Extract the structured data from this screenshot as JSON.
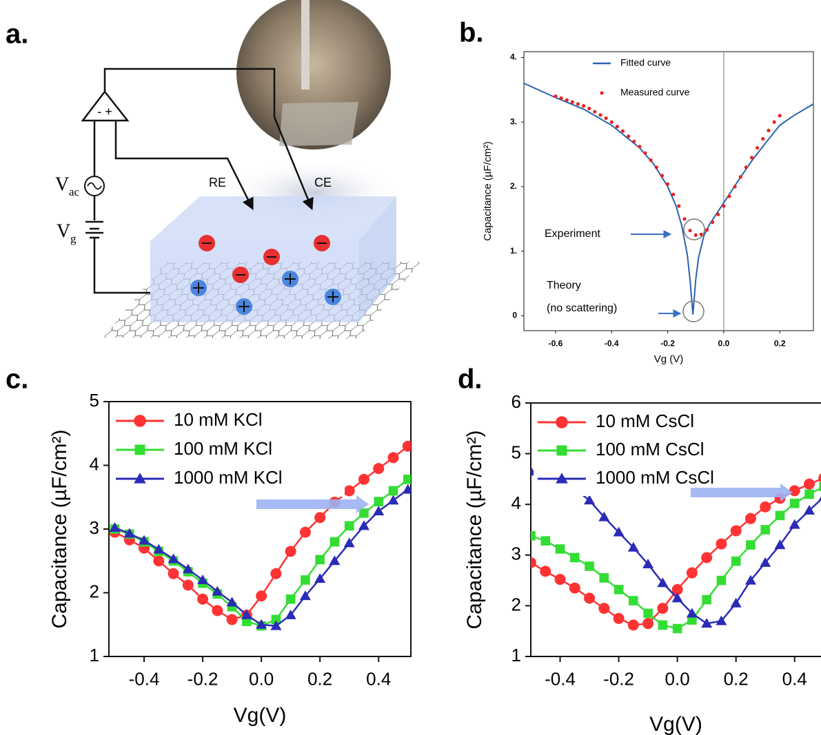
{
  "panel_labels": [
    "a.",
    "b.",
    "c.",
    "d."
  ],
  "diagram": {
    "electrode_labels": [
      "RE",
      "CE"
    ],
    "amplifier_signs": "- +",
    "vac": [
      "V",
      "ac"
    ],
    "vg": [
      "V",
      "g"
    ]
  },
  "chart_data": [
    {
      "type": "line",
      "x_label": "Vg (V)",
      "y_label": "Capacitance (µF/cm²)",
      "xlim": [
        -0.713,
        0.32
      ],
      "ylim": [
        -0.23,
        4.09
      ],
      "xticks": [
        -0.6,
        -0.4,
        -0.2,
        {
          "value": 0,
          "label": "0.0"
        },
        0.2
      ],
      "yticks": [
        0,
        {
          "value": 1,
          "label": "1."
        },
        {
          "value": 2,
          "label": "2."
        },
        {
          "value": 3,
          "label": "3."
        },
        {
          "value": 4,
          "label": "4."
        }
      ],
      "reference_line_x": 0,
      "legend": "upper center",
      "annotations": [
        "Experiment",
        "Theory",
        "(no scattering)"
      ],
      "series": [
        {
          "name": "Fitted curve",
          "color": "#2a62ad",
          "mode": "line",
          "x": [
            -0.713,
            -0.6,
            -0.5,
            -0.4,
            -0.3,
            -0.25,
            -0.2,
            -0.17,
            -0.15,
            -0.13,
            -0.12,
            -0.11,
            -0.1,
            -0.09,
            -0.07,
            -0.05,
            0,
            0.05,
            0.1,
            0.15,
            0.2,
            0.25,
            0.32
          ],
          "values": [
            3.6,
            3.38,
            3.2,
            2.95,
            2.6,
            2.35,
            2.0,
            1.7,
            1.4,
            0.95,
            0.55,
            0.02,
            0.55,
            0.9,
            1.25,
            1.42,
            1.75,
            2.08,
            2.4,
            2.68,
            2.95,
            3.1,
            3.28
          ]
        },
        {
          "name": "Measured curve",
          "color": "#e82222",
          "mode": "markers",
          "x": [
            -0.6,
            -0.58,
            -0.56,
            -0.54,
            -0.52,
            -0.5,
            -0.48,
            -0.46,
            -0.44,
            -0.42,
            -0.4,
            -0.38,
            -0.36,
            -0.34,
            -0.32,
            -0.3,
            -0.28,
            -0.26,
            -0.24,
            -0.22,
            -0.2,
            -0.18,
            -0.16,
            -0.14,
            -0.12,
            -0.1,
            -0.08,
            -0.06,
            -0.04,
            -0.02,
            0,
            0.02,
            0.04,
            0.06,
            0.08,
            0.1,
            0.12,
            0.14,
            0.16,
            0.18,
            0.2
          ],
          "values": [
            3.4,
            3.37,
            3.34,
            3.31,
            3.28,
            3.25,
            3.21,
            3.16,
            3.11,
            3.06,
            3.0,
            2.93,
            2.86,
            2.78,
            2.7,
            2.62,
            2.52,
            2.41,
            2.3,
            2.17,
            2.04,
            1.88,
            1.7,
            1.5,
            1.32,
            1.25,
            1.26,
            1.33,
            1.45,
            1.57,
            1.7,
            1.85,
            2.0,
            2.15,
            2.3,
            2.45,
            2.6,
            2.74,
            2.87,
            3.0,
            3.1
          ]
        }
      ]
    },
    {
      "type": "line",
      "x_label": "Vg(V)",
      "y_label": "Capacitance (µF/cm²)",
      "xlim": [
        -0.52,
        0.51
      ],
      "ylim": [
        1,
        5
      ],
      "xticks": [
        -0.4,
        -0.2,
        {
          "value": 0,
          "label": "0.0"
        },
        0.2,
        0.4
      ],
      "yticks": [
        1,
        2,
        3,
        4,
        5
      ],
      "legend": "upper left",
      "x": [
        -0.5,
        -0.45,
        -0.4,
        -0.35,
        -0.3,
        -0.25,
        -0.2,
        -0.15,
        -0.1,
        -0.05,
        0,
        0.05,
        0.1,
        0.15,
        0.2,
        0.25,
        0.3,
        0.35,
        0.4,
        0.45,
        0.5
      ],
      "series": [
        {
          "name": "10 mM KCl",
          "color": "#ff3333",
          "mode": "lines+markers",
          "marker": "circle",
          "values": [
            2.95,
            2.83,
            2.7,
            2.5,
            2.3,
            2.12,
            1.9,
            1.72,
            1.58,
            1.65,
            1.95,
            2.3,
            2.65,
            2.95,
            3.18,
            3.42,
            3.6,
            3.78,
            3.95,
            4.12,
            4.3
          ]
        },
        {
          "name": "100 mM KCl",
          "color": "#33dd33",
          "mode": "lines+markers",
          "marker": "square",
          "values": [
            3.0,
            2.92,
            2.8,
            2.65,
            2.5,
            2.33,
            2.15,
            1.98,
            1.78,
            1.55,
            1.48,
            1.58,
            1.9,
            2.2,
            2.52,
            2.8,
            3.05,
            3.25,
            3.43,
            3.6,
            3.78
          ]
        },
        {
          "name": "1000 mM KCl",
          "color": "#2b2bb8",
          "mode": "lines+markers",
          "marker": "triangle",
          "values": [
            3.02,
            2.93,
            2.82,
            2.68,
            2.53,
            2.37,
            2.2,
            2.02,
            1.85,
            1.65,
            1.5,
            1.48,
            1.65,
            1.95,
            2.22,
            2.5,
            2.78,
            3.05,
            3.28,
            3.45,
            3.62
          ]
        }
      ]
    },
    {
      "type": "line",
      "x_label": "Vg(V)",
      "y_label": "Capacitance (µF/cm²)",
      "xlim": [
        -0.5,
        0.49
      ],
      "ylim": [
        1,
        6
      ],
      "xticks": [
        -0.4,
        -0.2,
        {
          "value": 0,
          "label": "0.0"
        },
        0.2,
        0.4
      ],
      "yticks": [
        1,
        2,
        3,
        4,
        5,
        6
      ],
      "legend": "upper left",
      "x": [
        -0.5,
        -0.45,
        -0.4,
        -0.35,
        -0.3,
        -0.25,
        -0.2,
        -0.15,
        -0.1,
        -0.05,
        0,
        0.05,
        0.1,
        0.15,
        0.2,
        0.25,
        0.3,
        0.35,
        0.4,
        0.45,
        0.5
      ],
      "series": [
        {
          "name": "10 mM CsCl",
          "color": "#ff3333",
          "mode": "lines+markers",
          "marker": "circle",
          "values": [
            2.85,
            2.68,
            2.52,
            2.35,
            2.15,
            1.95,
            1.75,
            1.62,
            1.65,
            1.95,
            2.32,
            2.65,
            2.95,
            3.22,
            3.48,
            3.72,
            3.95,
            4.12,
            4.27,
            4.4,
            4.52
          ]
        },
        {
          "name": "100 mM CsCl",
          "color": "#33dd33",
          "mode": "lines+markers",
          "marker": "square",
          "values": [
            3.38,
            3.28,
            3.12,
            2.95,
            2.78,
            2.55,
            2.32,
            2.1,
            1.85,
            1.62,
            1.55,
            1.72,
            2.12,
            2.5,
            2.88,
            3.2,
            3.5,
            3.78,
            4.02,
            4.2,
            4.35
          ]
        },
        {
          "name": "1000 mM CsCl",
          "color": "#2b2bb8",
          "mode": "lines+markers",
          "marker": "triangle",
          "values": [
            4.65,
            4.5,
            4.42,
            4.3,
            4.08,
            3.75,
            3.45,
            3.15,
            2.82,
            2.45,
            2.15,
            1.85,
            1.65,
            1.7,
            2.05,
            2.5,
            2.85,
            3.2,
            3.6,
            3.88,
            4.15
          ]
        }
      ]
    }
  ]
}
